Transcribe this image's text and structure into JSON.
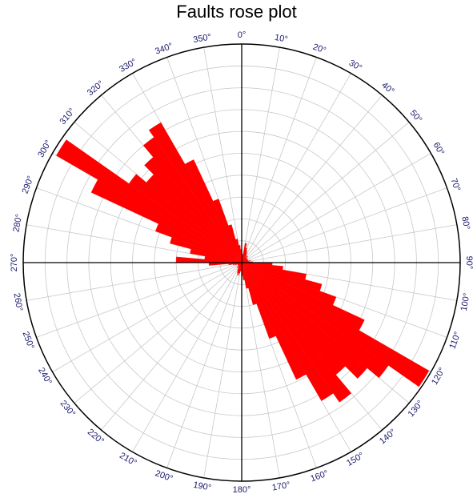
{
  "chart_data": {
    "type": "rose",
    "title": "Faults rose plot",
    "angle_unit": "degrees",
    "bin_width_deg": 5,
    "angular_ticks": [
      "0°",
      "10°",
      "20°",
      "30°",
      "40°",
      "50°",
      "60°",
      "70°",
      "80°",
      "90°",
      "100°",
      "110°",
      "120°",
      "130°",
      "140°",
      "150°",
      "160°",
      "170°",
      "180°",
      "190°",
      "200°",
      "210°",
      "220°",
      "230°",
      "240°",
      "250°",
      "260°",
      "270°",
      "280°",
      "290°",
      "300°",
      "310°",
      "320°",
      "330°",
      "340°",
      "350°"
    ],
    "tick_label_color": "#1a1a6e",
    "bar_color": "#ff0000",
    "grid": true,
    "radial_rings": 10,
    "r_max": 10,
    "bins": [
      {
        "dir": 0,
        "value": 0.3
      },
      {
        "dir": 5,
        "value": 0.4
      },
      {
        "dir": 10,
        "value": 0.9
      },
      {
        "dir": 15,
        "value": 0.7
      },
      {
        "dir": 20,
        "value": 0.6
      },
      {
        "dir": 25,
        "value": 0.5
      },
      {
        "dir": 30,
        "value": 0.4
      },
      {
        "dir": 35,
        "value": 0.3
      },
      {
        "dir": 40,
        "value": 0.4
      },
      {
        "dir": 45,
        "value": 0.3
      },
      {
        "dir": 50,
        "value": 0.3
      },
      {
        "dir": 55,
        "value": 0.3
      },
      {
        "dir": 60,
        "value": 0.3
      },
      {
        "dir": 65,
        "value": 0.3
      },
      {
        "dir": 70,
        "value": 0.3
      },
      {
        "dir": 75,
        "value": 0.4
      },
      {
        "dir": 80,
        "value": 0.3
      },
      {
        "dir": 85,
        "value": 0.5
      },
      {
        "dir": 90,
        "value": 1.4
      },
      {
        "dir": 95,
        "value": 1.9
      },
      {
        "dir": 100,
        "value": 3.0
      },
      {
        "dir": 105,
        "value": 3.8
      },
      {
        "dir": 110,
        "value": 4.6
      },
      {
        "dir": 115,
        "value": 6.2
      },
      {
        "dir": 120,
        "value": 9.9
      },
      {
        "dir": 125,
        "value": 8.2
      },
      {
        "dir": 130,
        "value": 7.5
      },
      {
        "dir": 135,
        "value": 6.7
      },
      {
        "dir": 140,
        "value": 7.8
      },
      {
        "dir": 145,
        "value": 7.3
      },
      {
        "dir": 150,
        "value": 5.9
      },
      {
        "dir": 155,
        "value": 3.7
      },
      {
        "dir": 160,
        "value": 2.0
      },
      {
        "dir": 165,
        "value": 1.2
      },
      {
        "dir": 170,
        "value": 0.8
      },
      {
        "dir": 175,
        "value": 0.6
      },
      {
        "dir": 180,
        "value": 0.3
      },
      {
        "dir": 185,
        "value": 0.4
      },
      {
        "dir": 190,
        "value": 0.5
      },
      {
        "dir": 195,
        "value": 0.6
      },
      {
        "dir": 200,
        "value": 0.5
      },
      {
        "dir": 205,
        "value": 0.4
      },
      {
        "dir": 210,
        "value": 0.3
      },
      {
        "dir": 215,
        "value": 0.2
      },
      {
        "dir": 220,
        "value": 0.3
      },
      {
        "dir": 225,
        "value": 0.2
      },
      {
        "dir": 230,
        "value": 0.2
      },
      {
        "dir": 235,
        "value": 0.2
      },
      {
        "dir": 240,
        "value": 0.2
      },
      {
        "dir": 245,
        "value": 0.2
      },
      {
        "dir": 250,
        "value": 0.3
      },
      {
        "dir": 255,
        "value": 0.4
      },
      {
        "dir": 260,
        "value": 0.6
      },
      {
        "dir": 265,
        "value": 1.5
      },
      {
        "dir": 270,
        "value": 3.0
      },
      {
        "dir": 275,
        "value": 1.7
      },
      {
        "dir": 280,
        "value": 2.4
      },
      {
        "dir": 285,
        "value": 3.4
      },
      {
        "dir": 290,
        "value": 4.2
      },
      {
        "dir": 295,
        "value": 7.6
      },
      {
        "dir": 300,
        "value": 9.8
      },
      {
        "dir": 305,
        "value": 6.3
      },
      {
        "dir": 310,
        "value": 5.7
      },
      {
        "dir": 315,
        "value": 6.3
      },
      {
        "dir": 320,
        "value": 7.0
      },
      {
        "dir": 325,
        "value": 7.4
      },
      {
        "dir": 330,
        "value": 5.2
      },
      {
        "dir": 335,
        "value": 3.1
      },
      {
        "dir": 340,
        "value": 1.8
      },
      {
        "dir": 345,
        "value": 1.1
      },
      {
        "dir": 350,
        "value": 0.8
      },
      {
        "dir": 355,
        "value": 0.6
      }
    ]
  }
}
